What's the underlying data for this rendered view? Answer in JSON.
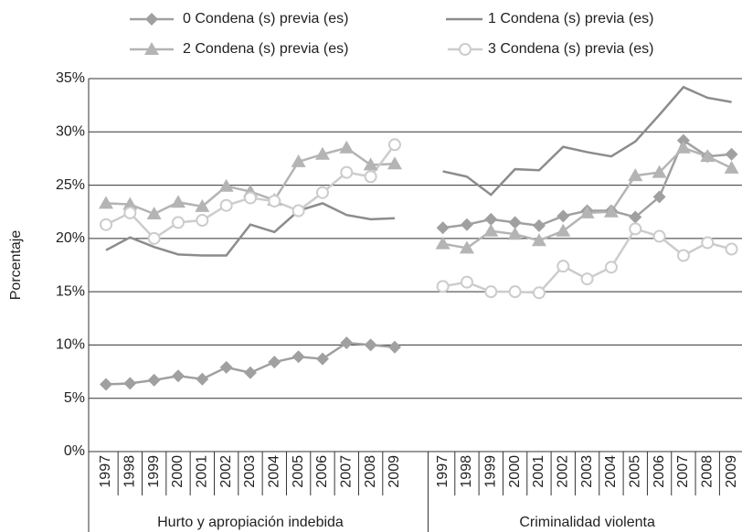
{
  "chart_data": {
    "type": "line",
    "y_label": "Porcentaje",
    "group_labels": [
      "Hurto y apropiación indebida",
      "Criminalidad violenta"
    ],
    "categories": [
      "1997",
      "1998",
      "1999",
      "2000",
      "2001",
      "2002",
      "2003",
      "2004",
      "2005",
      "2006",
      "2007",
      "2008",
      "2009",
      null,
      "1997",
      "1998",
      "1999",
      "2000",
      "2001",
      "2002",
      "2003",
      "2004",
      "2005",
      "2006",
      "2007",
      "2008",
      "2009"
    ],
    "series": [
      {
        "name": "0 Condena (s) previa (es)",
        "color": "#a0a0a0",
        "marker": "diamond",
        "values": [
          6.3,
          6.4,
          6.7,
          7.1,
          6.8,
          7.9,
          7.4,
          8.4,
          8.9,
          8.7,
          10.2,
          10.0,
          9.8,
          null,
          21.0,
          21.3,
          21.8,
          21.5,
          21.2,
          22.1,
          22.6,
          22.6,
          22.0,
          23.9,
          29.2,
          27.7,
          27.9
        ]
      },
      {
        "name": "1 Condena (s) previa (es)",
        "color": "#8c8c8c",
        "marker": "none",
        "values": [
          18.9,
          20.1,
          19.2,
          18.5,
          18.4,
          18.4,
          21.3,
          20.6,
          22.6,
          23.3,
          22.2,
          21.8,
          21.9,
          null,
          26.3,
          25.8,
          24.1,
          26.5,
          26.4,
          28.6,
          28.1,
          27.7,
          29.1,
          31.6,
          34.2,
          33.2,
          32.8
        ]
      },
      {
        "name": "2 Condena (s) previa (es)",
        "color": "#b4b4b4",
        "marker": "triangle",
        "values": [
          23.3,
          23.2,
          22.3,
          23.4,
          23.0,
          24.9,
          24.4,
          23.6,
          27.2,
          27.9,
          28.5,
          26.9,
          27.0,
          null,
          19.5,
          19.1,
          20.7,
          20.4,
          19.8,
          20.7,
          22.4,
          22.5,
          25.9,
          26.2,
          28.5,
          27.7,
          26.6
        ]
      },
      {
        "name": "3 Condena (s) previa (es)",
        "color": "#cccccc",
        "marker": "circle-open",
        "values": [
          21.3,
          22.4,
          20.0,
          21.5,
          21.7,
          23.1,
          23.8,
          23.5,
          22.6,
          24.3,
          26.2,
          25.8,
          28.8,
          null,
          15.5,
          15.9,
          15.0,
          15.0,
          14.9,
          17.4,
          16.2,
          17.3,
          20.9,
          20.2,
          18.4,
          19.6,
          19.0
        ]
      }
    ],
    "ylim": [
      0,
      35
    ],
    "yticks": [
      {
        "value": 0,
        "label": "0%"
      },
      {
        "value": 5,
        "label": "5%"
      },
      {
        "value": 10,
        "label": "10%"
      },
      {
        "value": 15,
        "label": "15%"
      },
      {
        "value": 20,
        "label": "20%"
      },
      {
        "value": 25,
        "label": "25%"
      },
      {
        "value": 30,
        "label": "30%"
      },
      {
        "value": 35,
        "label": "35%"
      }
    ],
    "grid": true
  }
}
